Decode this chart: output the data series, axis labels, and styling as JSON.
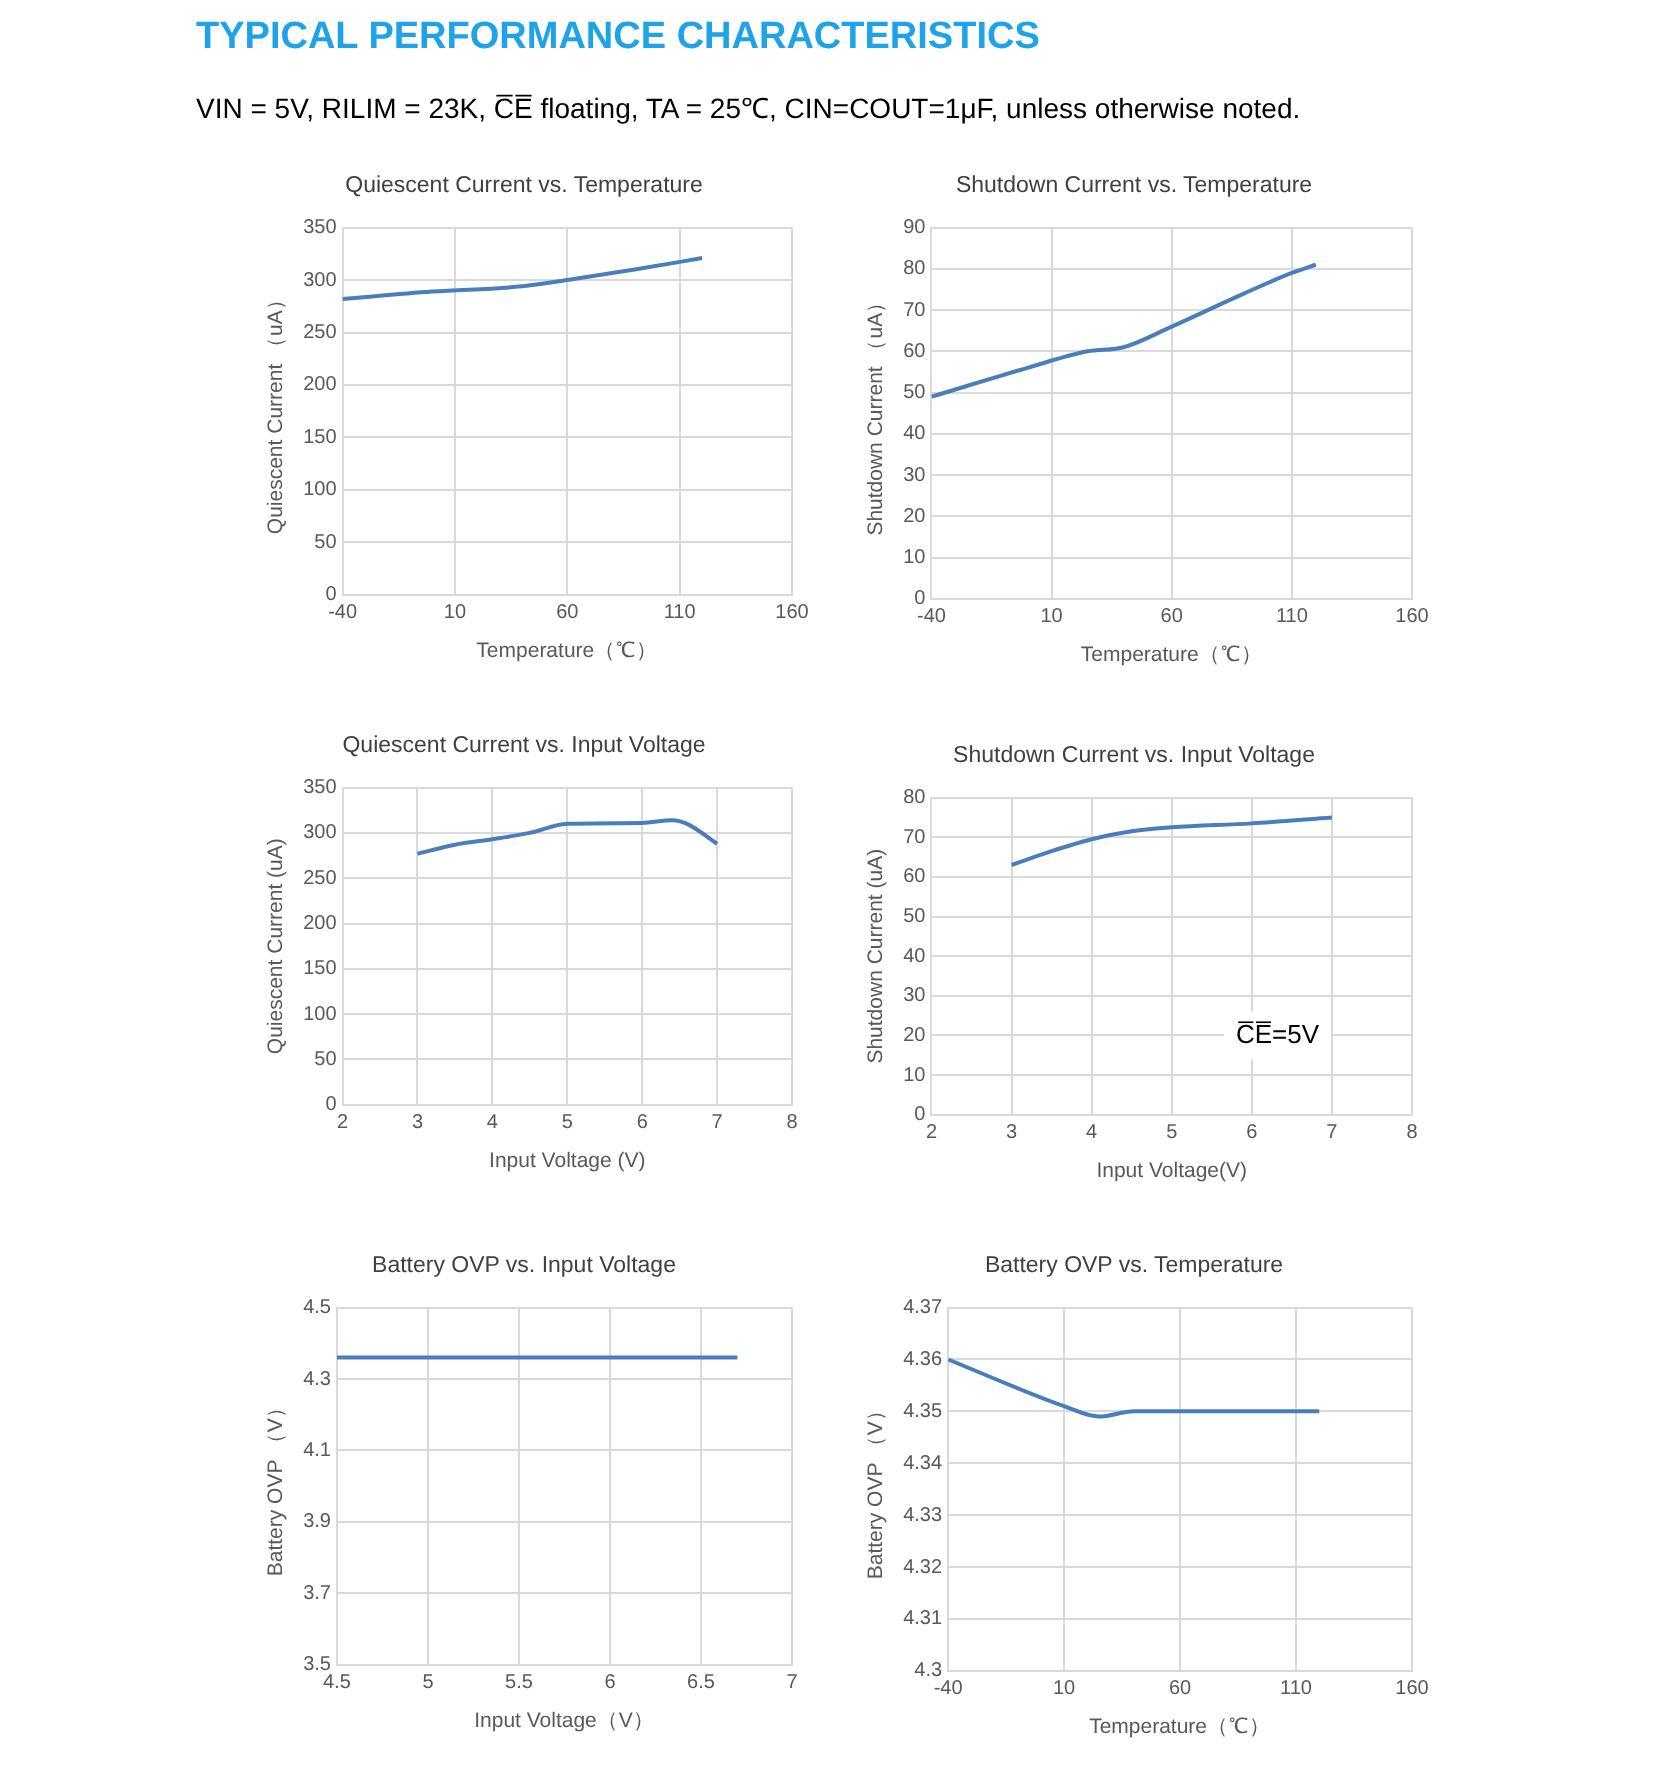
{
  "chart_data": [
    {
      "type": "other",
      "title": "TYPICAL PERFORMANCE CHARACTERISTICS",
      "subtitle": "VIN = 5V, RILIM = 23K, C̅E̅ floating, TA = 25℃, CIN=COUT=1μF, unless otherwise noted."
    },
    {
      "type": "line",
      "title": "Quiescent Current vs. Temperature",
      "xlabel": "Temperature（℃）",
      "ylabel": "Quiescent Current （uA）",
      "x": [
        -40,
        0,
        40,
        60,
        90,
        120
      ],
      "series": [
        {
          "color": "#4a7ebb",
          "values": [
            282,
            289,
            294,
            300,
            310,
            321
          ]
        }
      ],
      "xlim": [
        -40,
        160
      ],
      "xticks": [
        -40,
        10,
        60,
        110,
        160
      ],
      "ylim": [
        0,
        350
      ],
      "yticks": [
        0,
        50,
        100,
        150,
        200,
        250,
        300,
        350
      ],
      "grid": true,
      "legend": false
    },
    {
      "type": "line",
      "title": "Shutdown Current vs. Temperature",
      "xlabel": "Temperature（℃）",
      "ylabel": "Shutdown Current （uA）",
      "x": [
        -40,
        0,
        25,
        40,
        60,
        90,
        110,
        120
      ],
      "series": [
        {
          "color": "#4a7ebb",
          "values": [
            49,
            56,
            60,
            61,
            66,
            74,
            79,
            81
          ]
        }
      ],
      "xlim": [
        -40,
        160
      ],
      "xticks": [
        -40,
        10,
        60,
        110,
        160
      ],
      "ylim": [
        0,
        90
      ],
      "yticks": [
        0,
        10,
        20,
        30,
        40,
        50,
        60,
        70,
        80,
        90
      ],
      "grid": true,
      "legend": false
    },
    {
      "type": "line",
      "title": "Quiescent Current vs. Input Voltage",
      "xlabel": "Input Voltage (V)",
      "ylabel": "Quiescent Current (uA)",
      "x": [
        3,
        3.5,
        4,
        4.5,
        5,
        6,
        6.4,
        6.6,
        7
      ],
      "series": [
        {
          "color": "#4a7ebb",
          "values": [
            277,
            287,
            293,
            300,
            310,
            311,
            314,
            310,
            288
          ]
        }
      ],
      "xlim": [
        2,
        8
      ],
      "xticks": [
        2,
        3,
        4,
        5,
        6,
        7,
        8
      ],
      "ylim": [
        0,
        350
      ],
      "yticks": [
        0,
        50,
        100,
        150,
        200,
        250,
        300,
        350
      ],
      "grid": true,
      "legend": false
    },
    {
      "type": "line",
      "title": "Shutdown Current vs. Input Voltage",
      "xlabel": "Input Voltage(V)",
      "ylabel": "Shutdown Current (uA)",
      "x": [
        3,
        3.5,
        4,
        4.5,
        5,
        6,
        7
      ],
      "series": [
        {
          "color": "#4a7ebb",
          "values": [
            63,
            66.5,
            69.5,
            71.5,
            72.5,
            73.5,
            75
          ]
        }
      ],
      "xlim": [
        2,
        8
      ],
      "xticks": [
        2,
        3,
        4,
        5,
        6,
        7,
        8
      ],
      "ylim": [
        0,
        80
      ],
      "yticks": [
        0,
        10,
        20,
        30,
        40,
        50,
        60,
        70,
        80
      ],
      "grid": true,
      "legend": false,
      "annotations": [
        "C̅E̅=5V"
      ]
    },
    {
      "type": "line",
      "title": "Battery OVP vs. Input Voltage",
      "xlabel": "Input Voltage（V）",
      "ylabel": "Battery OVP （V）",
      "x": [
        4.5,
        5,
        5.5,
        6,
        6.5,
        6.7
      ],
      "series": [
        {
          "color": "#4a7ebb",
          "values": [
            4.36,
            4.36,
            4.36,
            4.36,
            4.36,
            4.36
          ]
        }
      ],
      "xlim": [
        4.5,
        7
      ],
      "xticks": [
        4.5,
        5,
        5.5,
        6,
        6.5,
        7
      ],
      "ylim": [
        3.5,
        4.5
      ],
      "yticks": [
        3.5,
        3.7,
        3.9,
        4.1,
        4.3,
        4.5
      ],
      "grid": true,
      "legend": false
    },
    {
      "type": "line",
      "title": "Battery OVP vs. Temperature",
      "xlabel": "Temperature（℃）",
      "ylabel": "Battery OVP （V）",
      "x": [
        -40,
        10,
        25,
        40,
        80,
        120
      ],
      "series": [
        {
          "color": "#4a7ebb",
          "values": [
            4.36,
            4.351,
            4.349,
            4.35,
            4.35,
            4.35
          ]
        }
      ],
      "xlim": [
        -40,
        160
      ],
      "xticks": [
        -40,
        10,
        60,
        110,
        160
      ],
      "ylim": [
        4.3,
        4.37
      ],
      "yticks": [
        4.3,
        4.31,
        4.32,
        4.33,
        4.34,
        4.35,
        4.36,
        4.37
      ],
      "grid": true,
      "legend": false
    }
  ]
}
